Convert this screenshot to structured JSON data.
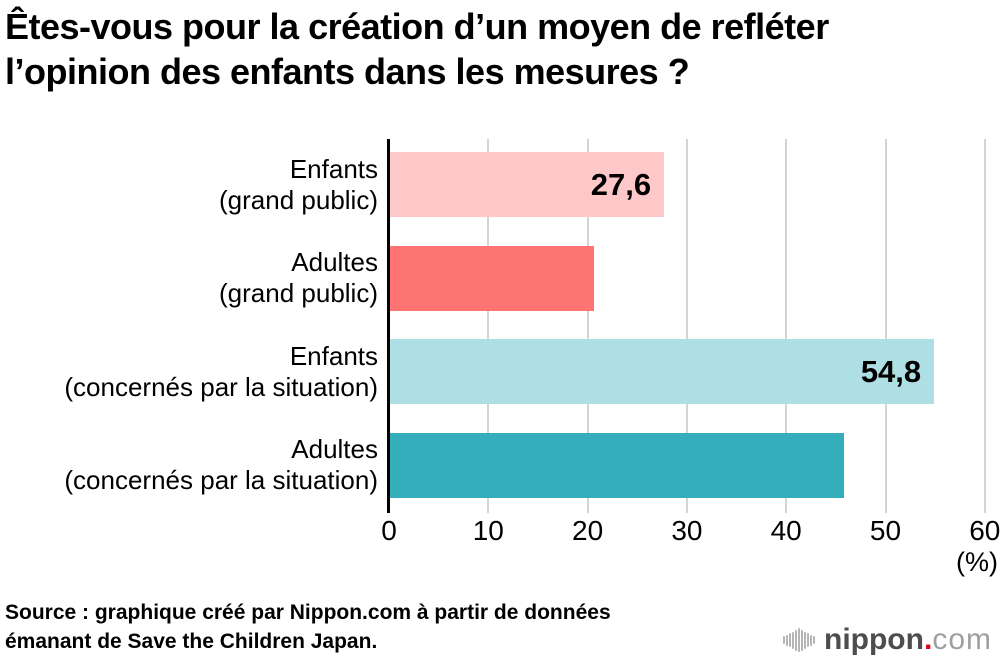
{
  "title": {
    "line1": "Êtes-vous pour la création d’un moyen de refléter",
    "line2": "l’opinion des enfants dans les mesures ?"
  },
  "chart_data": {
    "type": "bar",
    "orientation": "horizontal",
    "title": "Êtes-vous pour la création d’un moyen de refléter l’opinion des enfants dans les mesures ?",
    "categories": [
      "Enfants (grand public)",
      "Adultes (grand public)",
      "Enfants (concernés par la situation)",
      "Adultes (concernés par la situation)"
    ],
    "values": [
      27.6,
      20.5,
      54.8,
      45.7
    ],
    "xlim": [
      0,
      60
    ],
    "x_ticks": [
      "0",
      "10",
      "20",
      "30",
      "40",
      "50",
      "60"
    ],
    "x_unit_label": "(%)",
    "grid": true,
    "legend": false,
    "bars": [
      {
        "label_line1": "Enfants",
        "label_line2": "(grand public)",
        "value": 27.6,
        "value_label": "27,6",
        "label_visible": true,
        "color": "#ffc8c8"
      },
      {
        "label_line1": "Adultes",
        "label_line2": "(grand public)",
        "value": 20.5,
        "value_label": "",
        "label_visible": false,
        "color": "#fd7473"
      },
      {
        "label_line1": "Enfants",
        "label_line2": "(concernés par la situation)",
        "value": 54.8,
        "value_label": "54,8",
        "label_visible": true,
        "color": "#aedfe5"
      },
      {
        "label_line1": "Adultes",
        "label_line2": "(concernés par la situation)",
        "value": 45.7,
        "value_label": "",
        "label_visible": false,
        "color": "#35aebc"
      }
    ]
  },
  "axis": {
    "gridline_color": "#d4d4d4",
    "axis_color": "#000000"
  },
  "source": {
    "line1": "Source : graphique créé par Nippon.com à partir de données",
    "line2": "émanant de Save the Children Japan."
  },
  "logo": {
    "brand": "nippon",
    "dot": ".",
    "tld": "com",
    "colors": {
      "brand": "#4d4d4d",
      "dot": "#e60012",
      "tld": "#9f9f9f",
      "icon": "#b5b5b5"
    }
  }
}
